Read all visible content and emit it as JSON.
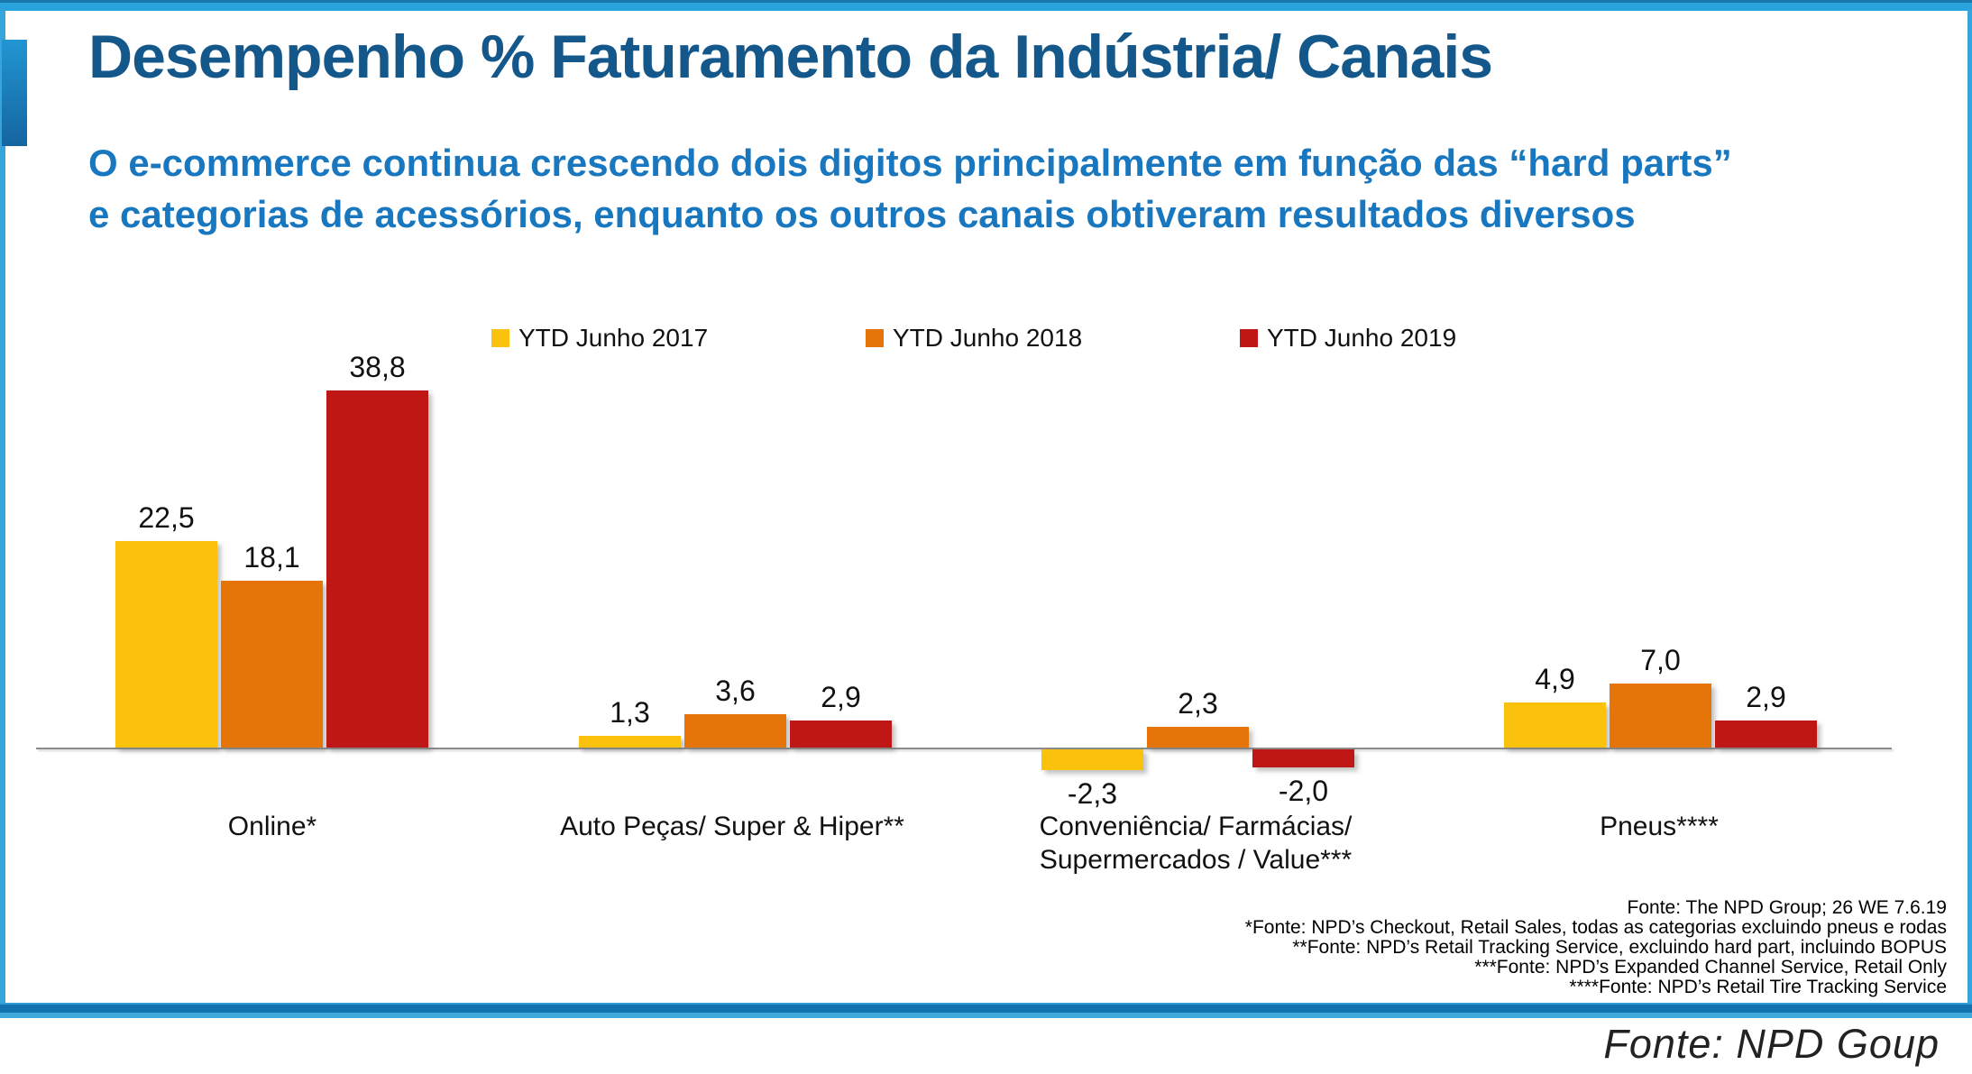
{
  "header": {
    "title": "Desempenho % Faturamento da Indústria/ Canais",
    "subtitle_line1": "O e-commerce continua crescendo dois digitos principalmente em função das “hard parts”",
    "subtitle_line2": "e categorias de acessórios, enquanto os outros canais obtiveram resultados diversos"
  },
  "colors": {
    "title_blue": "#14578A",
    "subtitle_blue": "#1877BE",
    "accent_blue": "#29A3DC",
    "axis_gray": "#8C8C8C",
    "series_yellow": "#FAC10D",
    "series_orange": "#E57508",
    "series_red": "#BE1714"
  },
  "chart_data": {
    "type": "bar",
    "title": "",
    "xlabel": "",
    "ylabel": "",
    "ylim": [
      -5,
      42
    ],
    "grid": false,
    "legend_position": "top",
    "categories": [
      "Online*",
      "Auto Peças/ Super & Hiper**",
      "Conveniência/ Farmácias/\nSupermercados / Value***",
      "Pneus****"
    ],
    "series": [
      {
        "name": "YTD Junho 2017",
        "color": "#FAC10D",
        "values": [
          22.5,
          1.3,
          -2.3,
          4.9
        ],
        "labels": [
          "22,5",
          "1,3",
          "-2,3",
          "4,9"
        ]
      },
      {
        "name": "YTD Junho 2018",
        "color": "#E57508",
        "values": [
          18.1,
          3.6,
          2.3,
          7.0
        ],
        "labels": [
          "18,1",
          "3,6",
          "2,3",
          "7,0"
        ]
      },
      {
        "name": "YTD Junho 2019",
        "color": "#BE1714",
        "values": [
          38.8,
          2.9,
          -2.0,
          2.9
        ],
        "labels": [
          "38,8",
          "2,9",
          "-2,0",
          "2,9"
        ]
      }
    ]
  },
  "footnotes": [
    "Fonte: The NPD Group; 26 WE 7.6.19",
    "*Fonte: NPD’s Checkout, Retail Sales, todas as categorias excluindo pneus e rodas",
    "**Fonte: NPD’s Retail Tracking Service, excluindo hard part, incluindo BOPUS",
    "***Fonte: NPD’s Expanded Channel Service, Retail Only",
    "****Fonte: NPD’s Retail Tire Tracking Service"
  ],
  "footer": {
    "source": "Fonte: NPD Goup"
  }
}
